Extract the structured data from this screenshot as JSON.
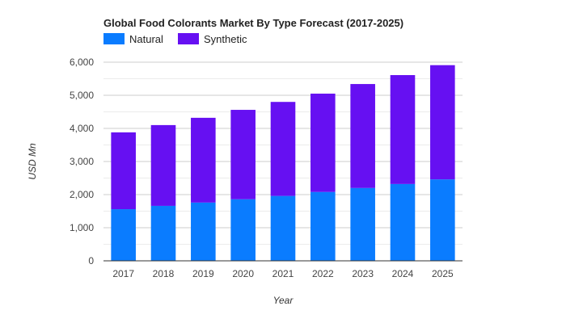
{
  "chart_data": {
    "type": "bar",
    "stacked": true,
    "title": "Global Food Colorants Market By Type Forecast (2017-2025)",
    "xlabel": "Year",
    "ylabel": "USD Mn",
    "categories": [
      "2017",
      "2018",
      "2019",
      "2020",
      "2021",
      "2022",
      "2023",
      "2024",
      "2025"
    ],
    "series": [
      {
        "name": "Natural",
        "color": "#0a7cff",
        "values": [
          1560,
          1660,
          1760,
          1860,
          1960,
          2080,
          2200,
          2320,
          2460
        ]
      },
      {
        "name": "Synthetic",
        "color": "#6610f2",
        "values": [
          2320,
          2440,
          2560,
          2700,
          2840,
          2970,
          3140,
          3290,
          3450
        ]
      }
    ],
    "ylim": [
      0,
      6000
    ],
    "yticks": [
      0,
      1000,
      2000,
      3000,
      4000,
      5000,
      6000
    ],
    "ytick_labels": [
      "0",
      "1,000",
      "2,000",
      "3,000",
      "4,000",
      "5,000",
      "6,000"
    ],
    "grid": true,
    "legend_position": "top-left"
  }
}
